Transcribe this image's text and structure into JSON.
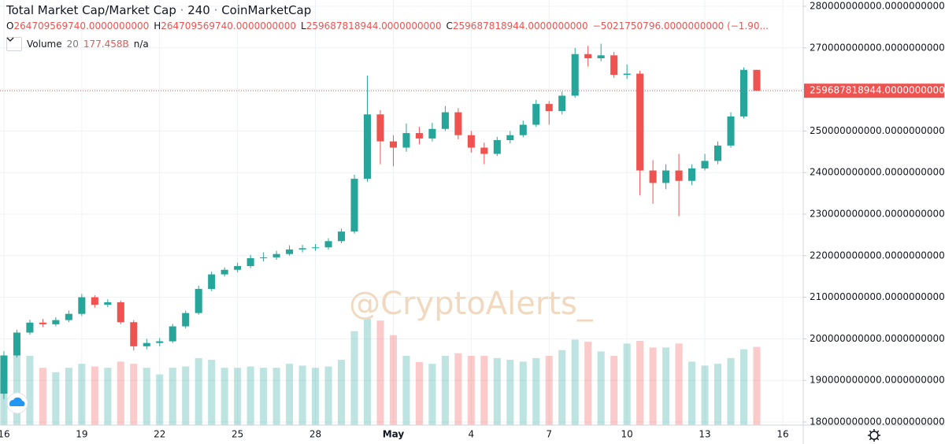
{
  "chart_data": {
    "type": "candlestick",
    "title": "Total Market Cap/Market Cap",
    "interval": "240",
    "source": "CoinMarketCap",
    "ohlc_legend": [
      {
        "key": "O",
        "label": "264709569740.0000000000"
      },
      {
        "key": "H",
        "label": "264709569740.0000000000"
      },
      {
        "key": "L",
        "label": "259687818944.0000000000"
      },
      {
        "key": "C",
        "label": "259687818944.0000000000"
      }
    ],
    "change_label": "−5021750796.0000000000 (−1.90...",
    "volume_name": "Volume",
    "volume_length": "20",
    "volume_last_label": "177.458B",
    "volume_ma_label": "n/a",
    "watermark": "@CryptoAlerts_",
    "up_color": "#26a69a",
    "down_color": "#ef5350",
    "grid": true,
    "last_price": {
      "value": 259687818944,
      "label": "259687818944.0000000000"
    },
    "xlim": [
      -0.15,
      30.79
    ],
    "xticks": [
      {
        "value": 0,
        "label": "16"
      },
      {
        "value": 3,
        "label": "19"
      },
      {
        "value": 6,
        "label": "22"
      },
      {
        "value": 9,
        "label": "25"
      },
      {
        "value": 12,
        "label": "28"
      },
      {
        "value": 15,
        "label": "May"
      },
      {
        "value": 18,
        "label": "4"
      },
      {
        "value": 21,
        "label": "7"
      },
      {
        "value": 24,
        "label": "10"
      },
      {
        "value": 27,
        "label": "13"
      },
      {
        "value": 30,
        "label": "16"
      }
    ],
    "ylim": [
      179240000000,
      281515000000
    ],
    "yticks": [
      {
        "value": 180000000000,
        "label": "180000000000.0000000000"
      },
      {
        "value": 190000000000,
        "label": "190000000000.0000000000"
      },
      {
        "value": 200000000000,
        "label": "200000000000.0000000000"
      },
      {
        "value": 210000000000,
        "label": "210000000000.0000000000"
      },
      {
        "value": 220000000000,
        "label": "220000000000.0000000000"
      },
      {
        "value": 230000000000,
        "label": "230000000000.0000000000"
      },
      {
        "value": 240000000000,
        "label": "240000000000.0000000000"
      },
      {
        "value": 250000000000,
        "label": "250000000000.0000000000"
      },
      {
        "value": 260000000000,
        "label": "260000000000.0000000000"
      },
      {
        "value": 270000000000,
        "label": "270000000000.0000000000"
      },
      {
        "value": 280000000000,
        "label": "280000000000.0000000000"
      }
    ],
    "x": [
      0,
      0.5,
      1,
      1.5,
      2,
      2.5,
      3,
      3.5,
      4,
      4.5,
      5,
      5.5,
      6,
      6.5,
      7,
      7.5,
      8,
      8.5,
      9,
      9.5,
      10,
      10.5,
      11,
      11.5,
      12,
      12.5,
      13,
      13.5,
      14,
      14.5,
      15,
      15.5,
      16,
      16.5,
      17,
      17.5,
      18,
      18.5,
      19,
      19.5,
      20,
      20.5,
      21,
      21.5,
      22,
      22.5,
      23,
      23.5,
      24,
      24.5,
      25,
      25.5,
      26,
      26.5,
      27,
      27.5,
      28,
      28.5,
      29
    ],
    "open": [
      186800000000.0,
      196000000000.0,
      201500000000.0,
      203900000000.0,
      203500000000.0,
      204500000000.0,
      206000000000.0,
      210000000000.0,
      208200000000.0,
      208800000000.0,
      204000000000.0,
      198200000000.0,
      199000000000.0,
      199400000000.0,
      203000000000.0,
      206200000000.0,
      212000000000.0,
      215500000000.0,
      216600000000.0,
      217500000000.0,
      219400000000.0,
      219600000000.0,
      220400000000.0,
      221500000000.0,
      221800000000.0,
      222000000000.0,
      223500000000.0,
      225800000000.0,
      238500000000.0,
      254000000000.0,
      247500000000.0,
      246000000000.0,
      249500000000.0,
      248200000000.0,
      250500000000.0,
      254500000000.0,
      249000000000.0,
      246000000000.0,
      244500000000.0,
      247800000000.0,
      249000000000.0,
      251500000000.0,
      256500000000.0,
      254800000000.0,
      258500000000.0,
      268500000000.0,
      267500000000.0,
      268200000000.0,
      263500000000.0,
      263800000000.0,
      240500000000.0,
      237500000000.0,
      240500000000.0,
      238000000000.0,
      241000000000.0,
      242800000000.0,
      246500000000.0,
      253500000000.0,
      264709569740
    ],
    "high": [
      197000000000.0,
      202200000000.0,
      204600000000.0,
      204800000000.0,
      205200000000.0,
      206800000000.0,
      210800000000.0,
      210500000000.0,
      209500000000.0,
      209200000000.0,
      204500000000.0,
      200000000000.0,
      200200000000.0,
      203600000000.0,
      206800000000.0,
      212800000000.0,
      216200000000.0,
      217200000000.0,
      218300000000.0,
      220200000000.0,
      220800000000.0,
      221200000000.0,
      222500000000.0,
      222600000000.0,
      222800000000.0,
      224200000000.0,
      226500000000.0,
      239500000000.0,
      263300000000.0,
      255000000000.0,
      249000000000.0,
      251800000000.0,
      251000000000.0,
      252000000000.0,
      256000000000.0,
      255500000000.0,
      250000000000.0,
      247200000000.0,
      248600000000.0,
      250000000000.0,
      252500000000.0,
      257500000000.0,
      257200000000.0,
      259500000000.0,
      270000000000.0,
      270500000000.0,
      271000000000.0,
      269000000000.0,
      266000000000.0,
      264500000000.0,
      243000000000.0,
      242000000000.0,
      244500000000.0,
      242000000000.0,
      244500000000.0,
      247500000000.0,
      254500000000.0,
      265300000000.0,
      264709569740
    ],
    "low": [
      185500000000.0,
      195500000000.0,
      201000000000.0,
      202800000000.0,
      203000000000.0,
      204000000000.0,
      205500000000.0,
      207500000000.0,
      207600000000.0,
      203500000000.0,
      197200000000.0,
      197500000000.0,
      198200000000.0,
      199000000000.0,
      202500000000.0,
      205800000000.0,
      211500000000.0,
      215000000000.0,
      216000000000.0,
      217000000000.0,
      218600000000.0,
      219000000000.0,
      220000000000.0,
      220800000000.0,
      221200000000.0,
      221500000000.0,
      223000000000.0,
      225300000000.0,
      237800000000.0,
      242000000000.0,
      241500000000.0,
      245000000000.0,
      246800000000.0,
      247500000000.0,
      250000000000.0,
      248000000000.0,
      244800000000.0,
      242000000000.0,
      244000000000.0,
      247000000000.0,
      248500000000.0,
      251000000000.0,
      251500000000.0,
      254000000000.0,
      258000000000.0,
      265500000000.0,
      266800000000.0,
      262800000000.0,
      262500000000.0,
      234500000000.0,
      232500000000.0,
      236000000000.0,
      229500000000.0,
      237000000000.0,
      240500000000.0,
      242000000000.0,
      246000000000.0,
      253000000000.0,
      259687818944
    ],
    "close": [
      196000000000.0,
      201500000000.0,
      203900000000.0,
      203500000000.0,
      204500000000.0,
      206000000000.0,
      210000000000.0,
      208200000000.0,
      208800000000.0,
      204000000000.0,
      198200000000.0,
      199000000000.0,
      199400000000.0,
      203000000000.0,
      206200000000.0,
      212000000000.0,
      215500000000.0,
      216600000000.0,
      217500000000.0,
      219400000000.0,
      219600000000.0,
      220400000000.0,
      221500000000.0,
      221800000000.0,
      222000000000.0,
      223500000000.0,
      225800000000.0,
      238500000000.0,
      254000000000.0,
      247500000000.0,
      246000000000.0,
      249500000000.0,
      248200000000.0,
      250500000000.0,
      254500000000.0,
      249000000000.0,
      246000000000.0,
      244500000000.0,
      247800000000.0,
      249000000000.0,
      251500000000.0,
      256500000000.0,
      254800000000.0,
      258500000000.0,
      268500000000.0,
      267500000000.0,
      268200000000.0,
      263500000000.0,
      263800000000.0,
      240500000000.0,
      237500000000.0,
      240500000000.0,
      238000000000.0,
      241000000000.0,
      242800000000.0,
      246500000000.0,
      253500000000.0,
      264709569740,
      259687818944
    ],
    "volume": [
      111000000000.0,
      161000000000.0,
      157000000000.0,
      130000000000.0,
      120000000000.0,
      130000000000.0,
      139000000000.0,
      133000000000.0,
      130000000000.0,
      144000000000.0,
      139000000000.0,
      130000000000.0,
      115000000000.0,
      130000000000.0,
      133000000000.0,
      152000000000.0,
      148000000000.0,
      130000000000.0,
      130000000000.0,
      133000000000.0,
      130000000000.0,
      130000000000.0,
      139000000000.0,
      135000000000.0,
      130000000000.0,
      133000000000.0,
      148000000000.0,
      213000000000.0,
      241000000000.0,
      237000000000.0,
      204000000000.0,
      157000000000.0,
      143000000000.0,
      139000000000.0,
      157000000000.0,
      163000000000.0,
      157000000000.0,
      157000000000.0,
      152000000000.0,
      148000000000.0,
      144000000000.0,
      152000000000.0,
      157000000000.0,
      170000000000.0,
      194000000000.0,
      189000000000.0,
      167000000000.0,
      157000000000.0,
      185000000000.0,
      191000000000.0,
      176000000000.0,
      176000000000.0,
      185000000000.0,
      144000000000.0,
      135000000000.0,
      139000000000.0,
      152000000000.0,
      172000000000.0,
      177458000000
    ]
  }
}
